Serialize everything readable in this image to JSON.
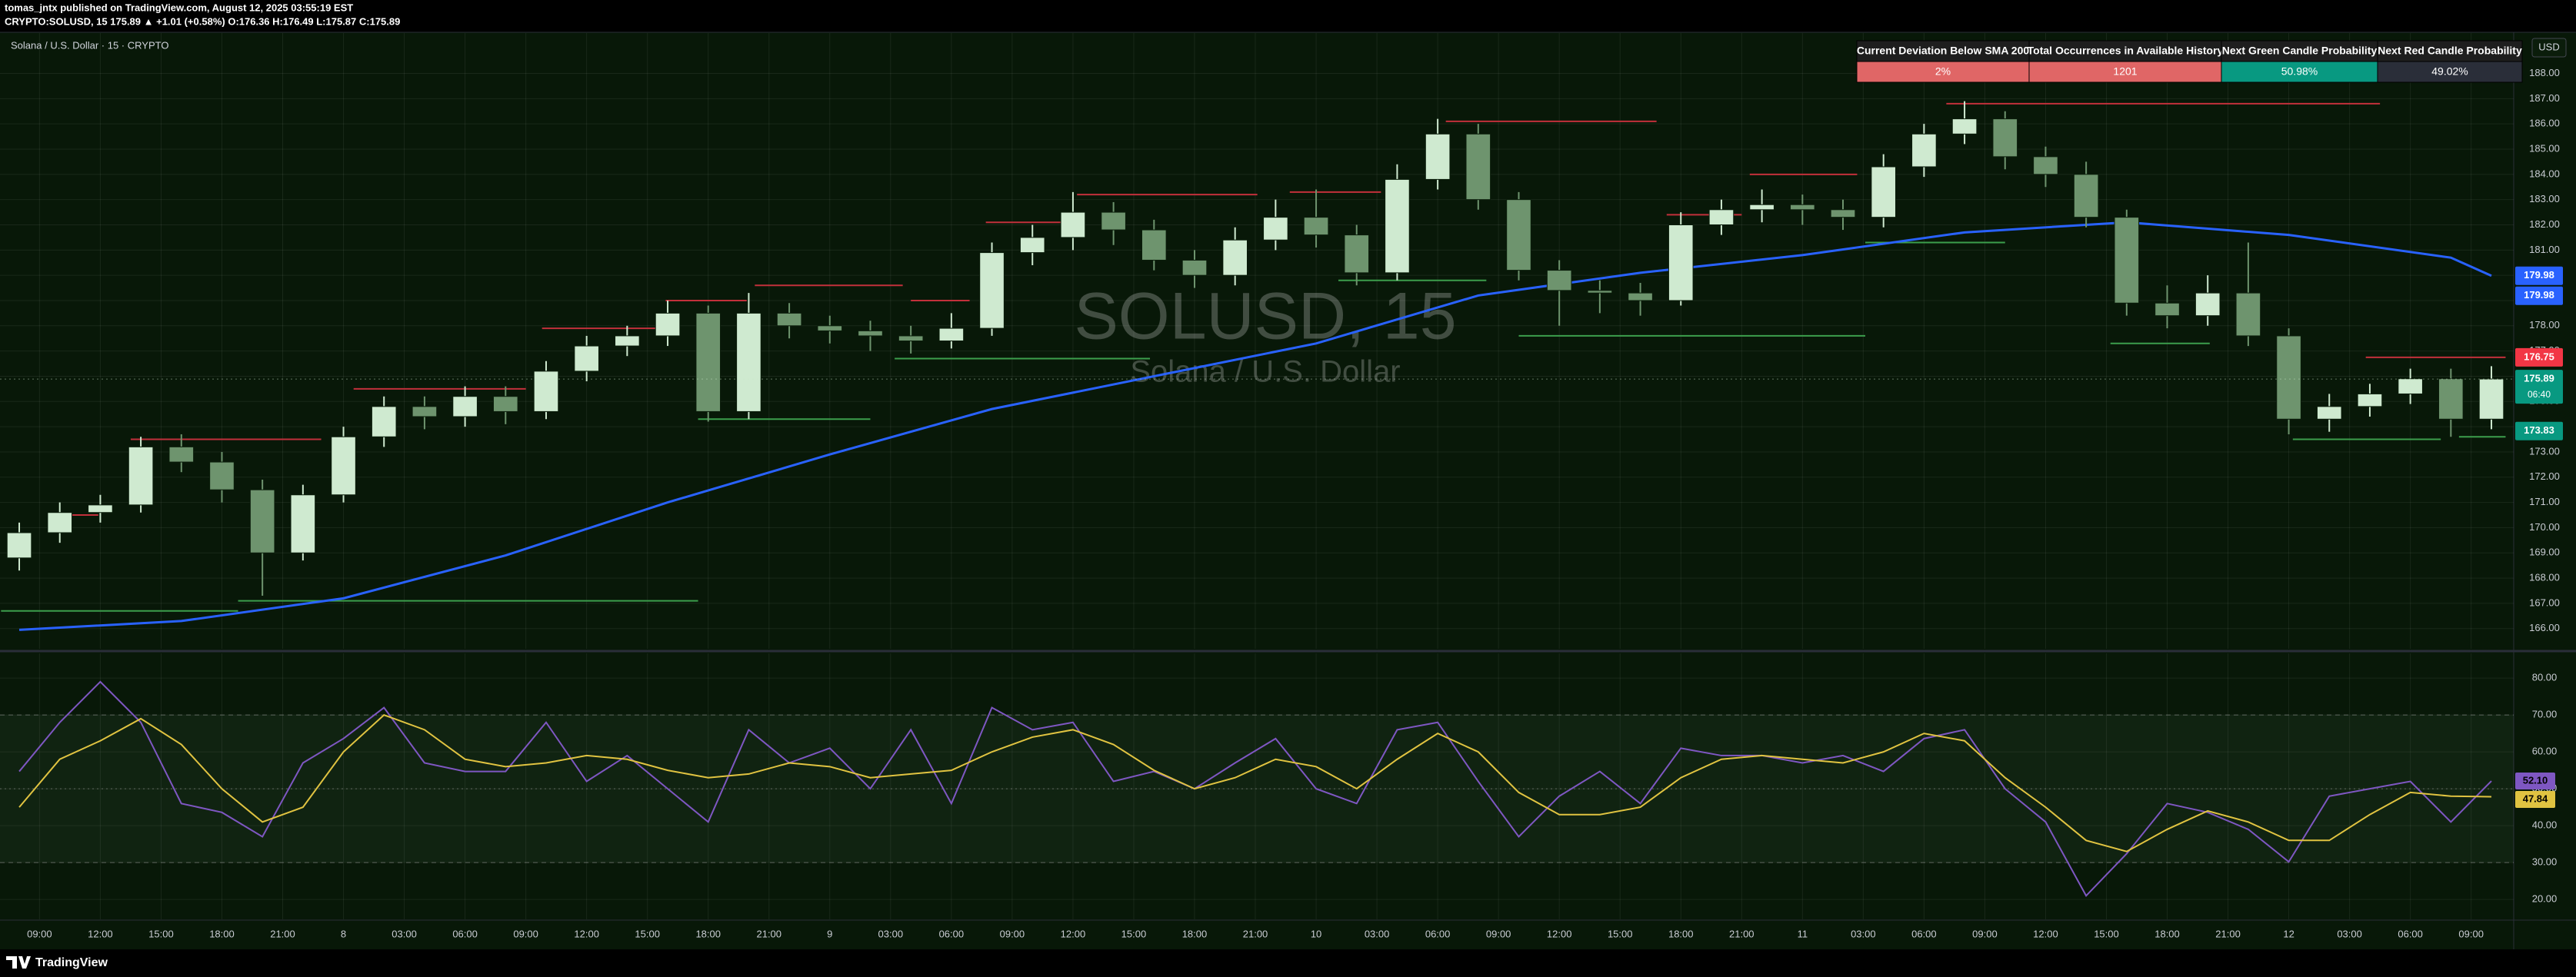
{
  "header": {
    "publisher": "tomas_jntx published on TradingView.com, August 12, 2025 03:55:19 EST",
    "symbol_line": "CRYPTO:SOLUSD, 15  175.89 ▲ +1.01 (+0.58%) O:176.36 H:176.49 L:175.87 C:175.89"
  },
  "footer": {
    "brand": "TradingView"
  },
  "table": {
    "headers": [
      "Current Deviation Below SMA 200",
      "Total Occurrences in Available History",
      "Next Green Candle Probability",
      "Next Red Candle Probability"
    ],
    "values": [
      "2%",
      "1201",
      "50.98%",
      "49.02%"
    ],
    "colors": [
      "#e06666",
      "#e06666",
      "#089981",
      "#2a2e39"
    ],
    "header_color": "#1e1e1e"
  },
  "chart_data": [
    {
      "type": "candlestick",
      "title": "Solana / U.S. Dollar · 15 · CRYPTO",
      "watermark": "SOLUSD, 15",
      "watermark_subtitle": "Solana / U.S. Dollar",
      "currency": "USD",
      "x": [
        8,
        10,
        12,
        14,
        16,
        18,
        20,
        22,
        24,
        26,
        28,
        30,
        32,
        34,
        36,
        38,
        40,
        42,
        44,
        46,
        48,
        50,
        52,
        54,
        56,
        58,
        60,
        62,
        64,
        66,
        68,
        70,
        72,
        74,
        76,
        78,
        80,
        82,
        84,
        86,
        88,
        90,
        92,
        94,
        96,
        98,
        100,
        102,
        104,
        106,
        108,
        110,
        112,
        114,
        116,
        118,
        120,
        122,
        124,
        126,
        128,
        130
      ],
      "open": [
        168.8,
        169.8,
        170.6,
        170.9,
        173.2,
        172.6,
        171.5,
        169.0,
        171.3,
        173.6,
        174.8,
        174.4,
        175.2,
        174.6,
        176.2,
        177.2,
        177.6,
        178.5,
        174.6,
        178.5,
        178.0,
        177.8,
        177.6,
        177.4,
        177.9,
        180.9,
        181.5,
        182.5,
        181.8,
        180.6,
        180.0,
        181.4,
        182.3,
        181.6,
        180.1,
        183.8,
        185.6,
        183.0,
        180.2,
        179.4,
        179.3,
        179.0,
        182.0,
        182.6,
        182.8,
        182.6,
        182.3,
        184.3,
        185.6,
        186.2,
        184.7,
        184.0,
        182.3,
        178.9,
        178.4,
        179.3,
        177.6,
        174.3,
        174.8,
        175.3,
        175.9,
        174.3
      ],
      "high": [
        170.2,
        171.0,
        171.3,
        173.6,
        173.7,
        173.0,
        171.9,
        171.7,
        174.0,
        175.2,
        175.2,
        175.6,
        175.6,
        176.6,
        177.6,
        178.0,
        179.0,
        178.8,
        179.3,
        178.9,
        178.4,
        178.2,
        178.0,
        178.5,
        181.3,
        182.0,
        183.3,
        182.9,
        182.2,
        181.0,
        181.9,
        183.0,
        183.4,
        182.0,
        184.4,
        186.2,
        186.0,
        183.3,
        180.6,
        179.8,
        179.7,
        182.5,
        183.0,
        183.4,
        183.2,
        183.0,
        184.8,
        186.0,
        186.9,
        186.5,
        185.1,
        184.5,
        182.6,
        179.6,
        180.0,
        181.3,
        177.9,
        175.3,
        175.7,
        176.3,
        176.3,
        176.4
      ],
      "low": [
        168.3,
        169.4,
        170.2,
        170.6,
        172.2,
        171.0,
        167.3,
        168.7,
        171.0,
        173.2,
        173.9,
        174.0,
        174.1,
        174.3,
        175.8,
        176.8,
        177.2,
        174.2,
        174.3,
        177.5,
        177.3,
        177.0,
        176.9,
        177.1,
        177.6,
        180.4,
        181.0,
        181.2,
        180.2,
        179.5,
        179.6,
        181.0,
        181.1,
        179.6,
        179.8,
        183.4,
        182.6,
        179.8,
        178.0,
        178.5,
        178.4,
        178.8,
        181.6,
        182.1,
        182.0,
        181.8,
        181.9,
        183.9,
        185.2,
        184.2,
        183.5,
        181.9,
        178.4,
        177.9,
        178.0,
        177.2,
        173.7,
        173.8,
        174.4,
        174.9,
        173.6,
        173.9
      ],
      "close": [
        169.8,
        170.6,
        170.9,
        173.2,
        172.6,
        171.5,
        169.0,
        171.3,
        173.6,
        174.8,
        174.4,
        175.2,
        174.6,
        176.2,
        177.2,
        177.6,
        178.5,
        174.6,
        178.5,
        178.0,
        177.8,
        177.6,
        177.4,
        177.9,
        180.9,
        181.5,
        182.5,
        181.8,
        180.6,
        180.0,
        181.4,
        182.3,
        181.6,
        180.1,
        183.8,
        185.6,
        183.0,
        180.2,
        179.4,
        179.3,
        179.0,
        182.0,
        182.6,
        182.8,
        182.6,
        182.3,
        184.3,
        185.6,
        186.2,
        184.7,
        184.0,
        182.3,
        178.9,
        178.4,
        179.3,
        177.6,
        174.3,
        174.8,
        175.3,
        175.9,
        174.3,
        175.89
      ],
      "up_color": "#cfead0",
      "down_color": "#6e946e",
      "sma": {
        "color": "#2962ff",
        "x": [
          8,
          16,
          24,
          32,
          40,
          48,
          56,
          64,
          72,
          80,
          88,
          96,
          104,
          112,
          120,
          128,
          130
        ],
        "values": [
          165.95,
          166.3,
          167.2,
          168.9,
          171.0,
          172.9,
          174.7,
          176.0,
          177.3,
          179.2,
          180.1,
          180.8,
          181.7,
          182.1,
          181.6,
          180.7,
          179.98
        ]
      },
      "resistance": {
        "color": "#c2303b",
        "levels": [
          {
            "x": [
              9.5,
              11.9
            ],
            "y": 170.5
          },
          {
            "x": [
              13.5,
              22.9
            ],
            "y": 173.5
          },
          {
            "x": [
              24.5,
              33.0
            ],
            "y": 175.5
          },
          {
            "x": [
              33.8,
              39.5
            ],
            "y": 177.9
          },
          {
            "x": [
              39.9,
              43.9
            ],
            "y": 179.0
          },
          {
            "x": [
              44.3,
              51.6
            ],
            "y": 179.6
          },
          {
            "x": [
              52.0,
              54.9
            ],
            "y": 179.0
          },
          {
            "x": [
              55.7,
              59.8
            ],
            "y": 182.1
          },
          {
            "x": [
              60.2,
              69.1
            ],
            "y": 183.2
          },
          {
            "x": [
              70.7,
              75.2
            ],
            "y": 183.3
          },
          {
            "x": [
              78.4,
              88.8
            ],
            "y": 186.1
          },
          {
            "x": [
              89.3,
              93.0
            ],
            "y": 182.4
          },
          {
            "x": [
              93.4,
              98.7
            ],
            "y": 184.0
          },
          {
            "x": [
              103.1,
              124.5
            ],
            "y": 186.8
          },
          {
            "x": [
              123.8,
              130.7
            ],
            "y": 176.75
          }
        ]
      },
      "support": {
        "color": "#3c9e4c",
        "levels": [
          {
            "x": [
              7.1,
              18.8
            ],
            "y": 166.7
          },
          {
            "x": [
              18.8,
              41.5
            ],
            "y": 167.1
          },
          {
            "x": [
              41.5,
              50.0
            ],
            "y": 174.3
          },
          {
            "x": [
              51.2,
              63.8
            ],
            "y": 176.7
          },
          {
            "x": [
              73.1,
              80.4
            ],
            "y": 179.8
          },
          {
            "x": [
              82.0,
              99.1
            ],
            "y": 177.6
          },
          {
            "x": [
              99.1,
              106.0
            ],
            "y": 181.3
          },
          {
            "x": [
              111.2,
              116.1
            ],
            "y": 177.3
          },
          {
            "x": [
              120.2,
              127.5
            ],
            "y": 173.5
          },
          {
            "x": [
              128.4,
              130.7
            ],
            "y": 173.6
          }
        ]
      },
      "price_tags": [
        {
          "value": 179.98,
          "color": "#2962ff"
        },
        {
          "value": 179.98,
          "color": "#2962ff"
        },
        {
          "value": 176.75,
          "color": "#f23645"
        },
        {
          "value": 175.89,
          "color": "#089981",
          "countdown": "06:40"
        },
        {
          "value": 173.83,
          "color": "#089981"
        }
      ],
      "xlim": [
        7.05,
        131.1
      ],
      "ylim": [
        165.2,
        189.6
      ],
      "yticks": [
        {
          "value": 166,
          "label": "166.00"
        },
        {
          "value": 167,
          "label": "167.00"
        },
        {
          "value": 168,
          "label": "168.00"
        },
        {
          "value": 169,
          "label": "169.00"
        },
        {
          "value": 170,
          "label": "170.00"
        },
        {
          "value": 171,
          "label": "171.00"
        },
        {
          "value": 172,
          "label": "172.00"
        },
        {
          "value": 173,
          "label": "173.00"
        },
        {
          "value": 174,
          "label": "174.00"
        },
        {
          "value": 175,
          "label": "175.00"
        },
        {
          "value": 176,
          "label": "176.00"
        },
        {
          "value": 177,
          "label": "177.00"
        },
        {
          "value": 178,
          "label": "178.00"
        },
        {
          "value": 179,
          "label": "179.00"
        },
        {
          "value": 180,
          "label": "180.00"
        },
        {
          "value": 181,
          "label": "181.00"
        },
        {
          "value": 182,
          "label": "182.00"
        },
        {
          "value": 183,
          "label": "183.00"
        },
        {
          "value": 184,
          "label": "184.00"
        },
        {
          "value": 185,
          "label": "185.00"
        },
        {
          "value": 186,
          "label": "186.00"
        },
        {
          "value": 187,
          "label": "187.00"
        },
        {
          "value": 188,
          "label": "188.00"
        }
      ],
      "grid": true
    },
    {
      "type": "line",
      "x": [
        8,
        10,
        12,
        14,
        16,
        18,
        20,
        22,
        24,
        26,
        28,
        30,
        32,
        34,
        36,
        38,
        40,
        42,
        44,
        46,
        48,
        50,
        52,
        54,
        56,
        58,
        60,
        62,
        64,
        66,
        68,
        70,
        72,
        74,
        76,
        78,
        80,
        82,
        84,
        86,
        88,
        90,
        92,
        94,
        96,
        98,
        100,
        102,
        104,
        106,
        108,
        110,
        112,
        114,
        116,
        118,
        120,
        122,
        124,
        126,
        128,
        130
      ],
      "series": [
        {
          "color": "#7e57c2",
          "values": [
            54.7,
            68,
            79,
            68,
            46,
            43.6,
            37,
            57,
            63.6,
            72,
            57,
            54.7,
            54.7,
            68,
            52,
            59,
            50,
            41,
            66,
            57,
            61,
            50,
            66,
            46,
            72,
            66,
            68,
            52,
            54.7,
            50,
            57,
            63.6,
            50,
            46,
            66,
            68,
            52,
            37,
            48,
            54.7,
            46,
            61,
            59,
            59,
            57,
            59,
            54.7,
            63.6,
            66,
            50,
            41,
            21,
            32.4,
            46,
            43.6,
            39,
            30.2,
            48,
            50,
            52,
            41,
            52.1
          ]
        },
        {
          "color": "#e0c341",
          "values": [
            45,
            58,
            63,
            69,
            62,
            50,
            41,
            45,
            60,
            70,
            66,
            58,
            56,
            57,
            59,
            58,
            55,
            53,
            54,
            57,
            56,
            53,
            54,
            55,
            60,
            64,
            66,
            62,
            55,
            50,
            53,
            58,
            56,
            50,
            58,
            65,
            60,
            49,
            43,
            43,
            45,
            53,
            58,
            59,
            58,
            57,
            60,
            65,
            63,
            53,
            45,
            36,
            33,
            39,
            44,
            41,
            36,
            36,
            43,
            49,
            48,
            47.84
          ]
        }
      ],
      "value_tags": [
        {
          "value": 52.1,
          "label": "52.10",
          "color": "#7e57c2"
        },
        {
          "value": 47.84,
          "color": "#e0c341"
        }
      ],
      "upper_band": 70,
      "middle_band": 50,
      "lower_band": 30,
      "xlim": [
        7.05,
        131.1
      ],
      "ylim": [
        14.6,
        86.7
      ],
      "yticks": [
        {
          "value": 20,
          "label": "20.00"
        },
        {
          "value": 30,
          "label": "30.00"
        },
        {
          "value": 40,
          "label": "40.00"
        },
        {
          "value": 50,
          "label": "50.00"
        },
        {
          "value": 60,
          "label": "60.00"
        },
        {
          "value": 70,
          "label": "70.00"
        },
        {
          "value": 80,
          "label": "80.00"
        }
      ],
      "xticks": [
        {
          "value": 9,
          "label": "09:00"
        },
        {
          "value": 12,
          "label": "12:00"
        },
        {
          "value": 15,
          "label": "15:00"
        },
        {
          "value": 18,
          "label": "18:00"
        },
        {
          "value": 21,
          "label": "21:00"
        },
        {
          "value": 24,
          "label": "8"
        },
        {
          "value": 27,
          "label": "03:00"
        },
        {
          "value": 30,
          "label": "06:00"
        },
        {
          "value": 33,
          "label": "09:00"
        },
        {
          "value": 36,
          "label": "12:00"
        },
        {
          "value": 39,
          "label": "15:00"
        },
        {
          "value": 42,
          "label": "18:00"
        },
        {
          "value": 45,
          "label": "21:00"
        },
        {
          "value": 48,
          "label": "9"
        },
        {
          "value": 51,
          "label": "03:00"
        },
        {
          "value": 54,
          "label": "06:00"
        },
        {
          "value": 57,
          "label": "09:00"
        },
        {
          "value": 60,
          "label": "12:00"
        },
        {
          "value": 63,
          "label": "15:00"
        },
        {
          "value": 66,
          "label": "18:00"
        },
        {
          "value": 69,
          "label": "21:00"
        },
        {
          "value": 72,
          "label": "10"
        },
        {
          "value": 75,
          "label": "03:00"
        },
        {
          "value": 78,
          "label": "06:00"
        },
        {
          "value": 81,
          "label": "09:00"
        },
        {
          "value": 84,
          "label": "12:00"
        },
        {
          "value": 87,
          "label": "15:00"
        },
        {
          "value": 90,
          "label": "18:00"
        },
        {
          "value": 93,
          "label": "21:00"
        },
        {
          "value": 96,
          "label": "11"
        },
        {
          "value": 99,
          "label": "03:00"
        },
        {
          "value": 102,
          "label": "06:00"
        },
        {
          "value": 105,
          "label": "09:00"
        },
        {
          "value": 108,
          "label": "12:00"
        },
        {
          "value": 111,
          "label": "15:00"
        },
        {
          "value": 114,
          "label": "18:00"
        },
        {
          "value": 117,
          "label": "21:00"
        },
        {
          "value": 120,
          "label": "12"
        },
        {
          "value": 123,
          "label": "03:00"
        },
        {
          "value": 126,
          "label": "06:00"
        },
        {
          "value": 129,
          "label": "09:00"
        }
      ],
      "grid": true
    }
  ]
}
